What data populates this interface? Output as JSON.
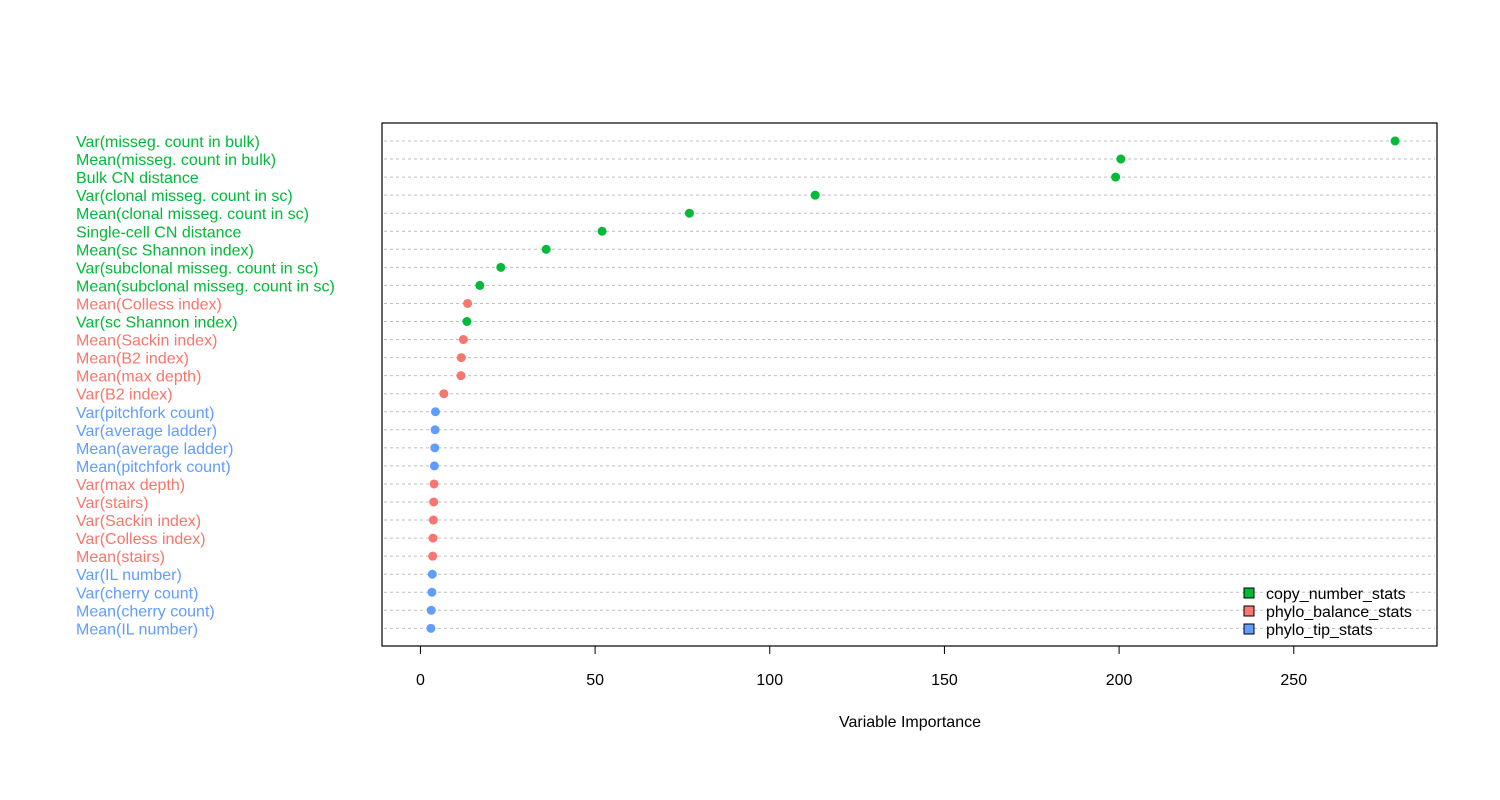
{
  "chart_data": {
    "type": "scatter",
    "title": "",
    "xlabel": "Variable Importance",
    "ylabel": "",
    "xlim": [
      -11,
      291
    ],
    "xticks": [
      0,
      50,
      100,
      150,
      200,
      250
    ],
    "grid": "horizontal dashed",
    "legend_position": "bottom-right",
    "colors": {
      "copy_number_stats": "#00ba38",
      "phylo_balance_stats": "#f8766d",
      "phylo_tip_stats": "#619cff"
    },
    "legend": [
      {
        "group": "copy_number_stats",
        "label": "copy_number_stats"
      },
      {
        "group": "phylo_balance_stats",
        "label": "phylo_balance_stats"
      },
      {
        "group": "phylo_tip_stats",
        "label": "phylo_tip_stats"
      }
    ],
    "points": [
      {
        "label": "Var(misseg. count in bulk)",
        "value": 279,
        "group": "copy_number_stats"
      },
      {
        "label": "Mean(misseg. count in bulk)",
        "value": 200.5,
        "group": "copy_number_stats"
      },
      {
        "label": "Bulk CN distance",
        "value": 199,
        "group": "copy_number_stats"
      },
      {
        "label": "Var(clonal misseg. count in sc)",
        "value": 113,
        "group": "copy_number_stats"
      },
      {
        "label": "Mean(clonal misseg. count in sc)",
        "value": 77,
        "group": "copy_number_stats"
      },
      {
        "label": "Single-cell CN distance",
        "value": 52,
        "group": "copy_number_stats"
      },
      {
        "label": "Mean(sc Shannon index)",
        "value": 36,
        "group": "copy_number_stats"
      },
      {
        "label": "Var(subclonal misseg. count in sc)",
        "value": 23,
        "group": "copy_number_stats"
      },
      {
        "label": "Mean(subclonal misseg. count in sc)",
        "value": 17,
        "group": "copy_number_stats"
      },
      {
        "label": "Mean(Colless index)",
        "value": 13.5,
        "group": "phylo_balance_stats"
      },
      {
        "label": "Var(sc Shannon index)",
        "value": 13.3,
        "group": "copy_number_stats"
      },
      {
        "label": "Mean(Sackin index)",
        "value": 12.3,
        "group": "phylo_balance_stats"
      },
      {
        "label": "Mean(B2 index)",
        "value": 11.7,
        "group": "phylo_balance_stats"
      },
      {
        "label": "Mean(max depth)",
        "value": 11.6,
        "group": "phylo_balance_stats"
      },
      {
        "label": "Var(B2 index)",
        "value": 6.7,
        "group": "phylo_balance_stats"
      },
      {
        "label": "Var(pitchfork count)",
        "value": 4.3,
        "group": "phylo_tip_stats"
      },
      {
        "label": "Var(average ladder)",
        "value": 4.2,
        "group": "phylo_tip_stats"
      },
      {
        "label": "Mean(average ladder)",
        "value": 4.1,
        "group": "phylo_tip_stats"
      },
      {
        "label": "Mean(pitchfork count)",
        "value": 4.0,
        "group": "phylo_tip_stats"
      },
      {
        "label": "Var(max depth)",
        "value": 3.9,
        "group": "phylo_balance_stats"
      },
      {
        "label": "Var(stairs)",
        "value": 3.8,
        "group": "phylo_balance_stats"
      },
      {
        "label": "Var(Sackin index)",
        "value": 3.7,
        "group": "phylo_balance_stats"
      },
      {
        "label": "Var(Colless index)",
        "value": 3.6,
        "group": "phylo_balance_stats"
      },
      {
        "label": "Mean(stairs)",
        "value": 3.5,
        "group": "phylo_balance_stats"
      },
      {
        "label": "Var(IL number)",
        "value": 3.4,
        "group": "phylo_tip_stats"
      },
      {
        "label": "Var(cherry count)",
        "value": 3.3,
        "group": "phylo_tip_stats"
      },
      {
        "label": "Mean(cherry count)",
        "value": 3.1,
        "group": "phylo_tip_stats"
      },
      {
        "label": "Mean(IL number)",
        "value": 3.0,
        "group": "phylo_tip_stats"
      }
    ]
  }
}
